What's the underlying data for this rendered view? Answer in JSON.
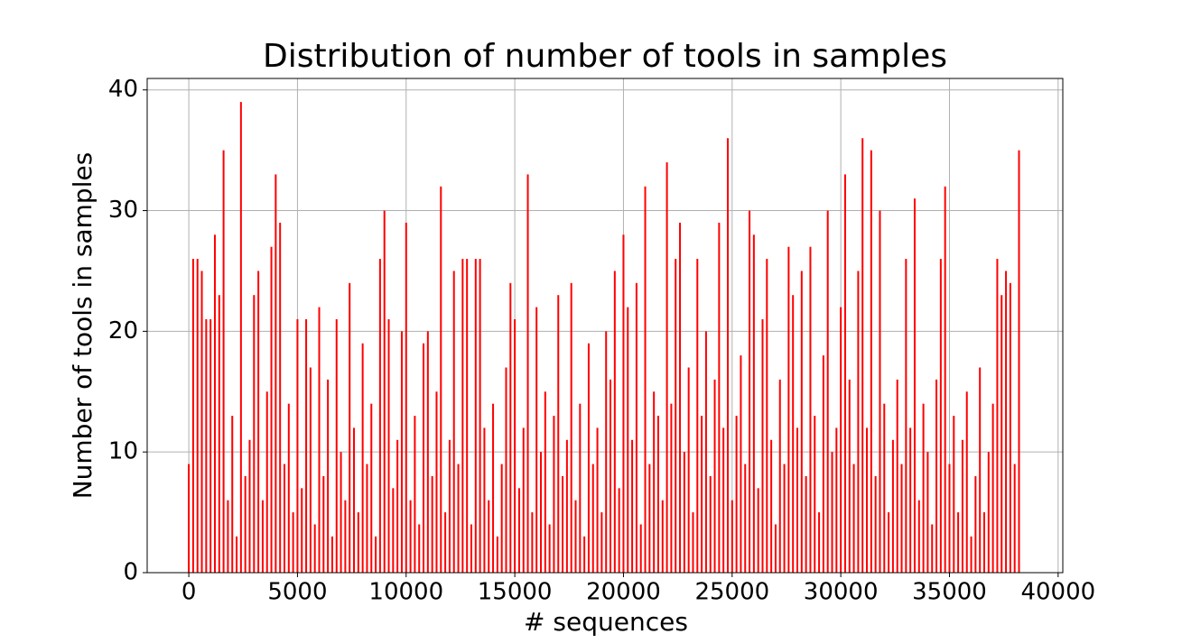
{
  "chart_data": {
    "type": "bar",
    "title": "Distribution of number of tools in samples",
    "xlabel": "# sequences",
    "ylabel": "Number of tools in samples",
    "color": "#ff0000",
    "grid": true,
    "xlim": [
      -1915,
      40215
    ],
    "ylim": [
      0,
      40.95
    ],
    "xticks": [
      0,
      5000,
      10000,
      15000,
      20000,
      25000,
      30000,
      35000,
      40000
    ],
    "yticks": [
      0,
      10,
      20,
      30,
      40
    ],
    "x": [
      0,
      200,
      400,
      600,
      800,
      1000,
      1200,
      1400,
      1600,
      1800,
      2000,
      2200,
      2400,
      2600,
      2800,
      3000,
      3200,
      3400,
      3600,
      3800,
      4000,
      4200,
      4400,
      4600,
      4800,
      5000,
      5200,
      5400,
      5600,
      5800,
      6000,
      6200,
      6400,
      6600,
      6800,
      7000,
      7200,
      7400,
      7600,
      7800,
      8000,
      8200,
      8400,
      8600,
      8800,
      9000,
      9200,
      9400,
      9600,
      9800,
      10000,
      10200,
      10400,
      10600,
      10800,
      11000,
      11200,
      11400,
      11600,
      11800,
      12000,
      12200,
      12400,
      12600,
      12800,
      13000,
      13200,
      13400,
      13600,
      13800,
      14000,
      14200,
      14400,
      14600,
      14800,
      15000,
      15200,
      15400,
      15600,
      15800,
      16000,
      16200,
      16400,
      16600,
      16800,
      17000,
      17200,
      17400,
      17600,
      17800,
      18000,
      18200,
      18400,
      18600,
      18800,
      19000,
      19200,
      19400,
      19600,
      19800,
      20000,
      20200,
      20400,
      20600,
      20800,
      21000,
      21200,
      21400,
      21600,
      21800,
      22000,
      22200,
      22400,
      22600,
      22800,
      23000,
      23200,
      23400,
      23600,
      23800,
      24000,
      24200,
      24400,
      24600,
      24800,
      25000,
      25200,
      25400,
      25600,
      25800,
      26000,
      26200,
      26400,
      26600,
      26800,
      27000,
      27200,
      27400,
      27600,
      27800,
      28000,
      28200,
      28400,
      28600,
      28800,
      29000,
      29200,
      29400,
      29600,
      29800,
      30000,
      30200,
      30400,
      30600,
      30800,
      31000,
      31200,
      31400,
      31600,
      31800,
      32000,
      32200,
      32400,
      32600,
      32800,
      33000,
      33200,
      33400,
      33600,
      33800,
      34000,
      34200,
      34400,
      34600,
      34800,
      35000,
      35200,
      35400,
      35600,
      35800,
      36000,
      36200,
      36400,
      36600,
      36800,
      37000,
      37200,
      37400,
      37600,
      37800,
      38000,
      38200
    ],
    "values": [
      9,
      26,
      26,
      25,
      21,
      21,
      28,
      23,
      35,
      6,
      13,
      3,
      39,
      8,
      11,
      23,
      25,
      6,
      15,
      27,
      33,
      29,
      9,
      14,
      5,
      21,
      7,
      21,
      17,
      4,
      22,
      8,
      16,
      3,
      21,
      10,
      6,
      24,
      12,
      5,
      19,
      9,
      14,
      3,
      26,
      30,
      21,
      7,
      11,
      20,
      29,
      6,
      13,
      4,
      19,
      20,
      8,
      15,
      32,
      5,
      11,
      25,
      9,
      26,
      26,
      4,
      26,
      26,
      12,
      6,
      14,
      3,
      9,
      17,
      24,
      21,
      7,
      12,
      33,
      5,
      22,
      10,
      15,
      4,
      13,
      23,
      8,
      11,
      24,
      6,
      14,
      3,
      19,
      9,
      12,
      5,
      20,
      16,
      25,
      7,
      28,
      22,
      11,
      24,
      4,
      32,
      9,
      15,
      13,
      6,
      34,
      14,
      26,
      29,
      10,
      17,
      5,
      26,
      13,
      20,
      8,
      16,
      29,
      12,
      36,
      6,
      13,
      18,
      9,
      30,
      28,
      7,
      21,
      26,
      11,
      4,
      16,
      9,
      27,
      23,
      12,
      25,
      8,
      27,
      13,
      5,
      18,
      30,
      10,
      12,
      22,
      33,
      16,
      9,
      25,
      36,
      12,
      35,
      8,
      30,
      14,
      5,
      11,
      16,
      9,
      26,
      12,
      31,
      6,
      14,
      10,
      4,
      16,
      26,
      32,
      9,
      13,
      5,
      11,
      15,
      3,
      8,
      17,
      5,
      10,
      14,
      26,
      23,
      25,
      24,
      9,
      35
    ]
  }
}
